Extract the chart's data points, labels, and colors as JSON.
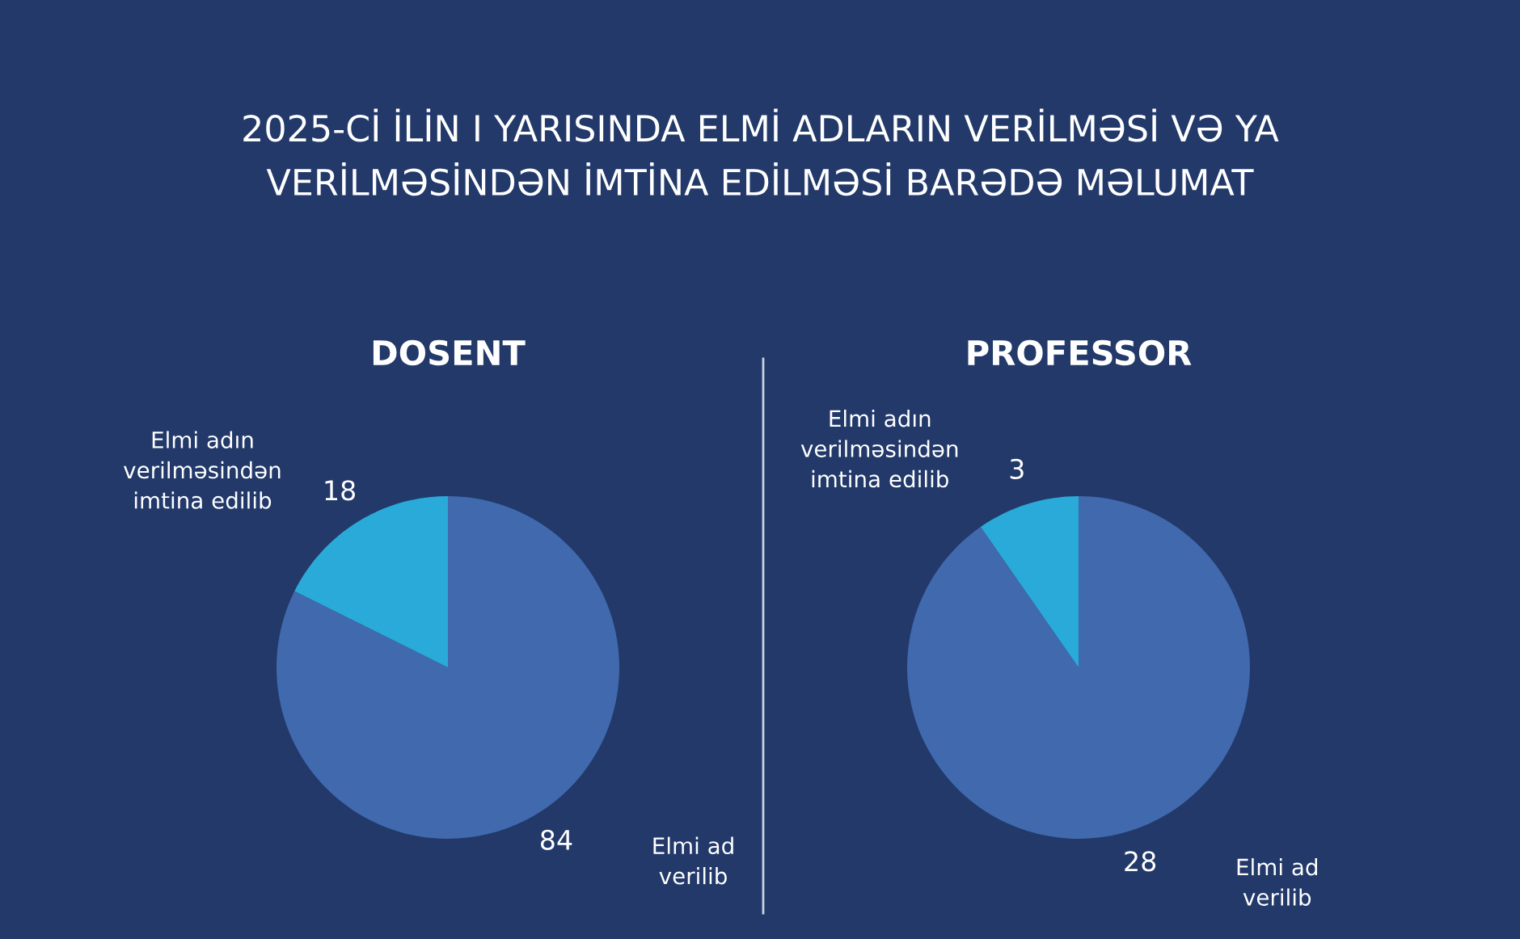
{
  "chart_data": [
    {
      "type": "pie",
      "title": "DOSENT",
      "annotations": [
        "2025-Cİ İLİN I YARISINDA ELMİ ADLARIN VERİLMƏSİ VƏ YA\nVERİLMƏSİNDƏN İMTİNA EDİLMƏSİ BARƏDƏ MƏLUMAT"
      ],
      "categories": [
        "Elmi ad\nverilib",
        "Elmi adın\nverilməsindən\nimtina edilib"
      ],
      "values": [
        84,
        18
      ],
      "colors": [
        "#4169ae",
        "#2aaad8"
      ],
      "data_labels": true,
      "legend": false
    },
    {
      "type": "pie",
      "title": "PROFESSOR",
      "categories": [
        "Elmi ad\nverilib",
        "Elmi adın\nverilməsindən\nimtina edilib"
      ],
      "values": [
        28,
        3
      ],
      "colors": [
        "#4169ae",
        "#2aaad8"
      ],
      "data_labels": true,
      "legend": false
    }
  ]
}
